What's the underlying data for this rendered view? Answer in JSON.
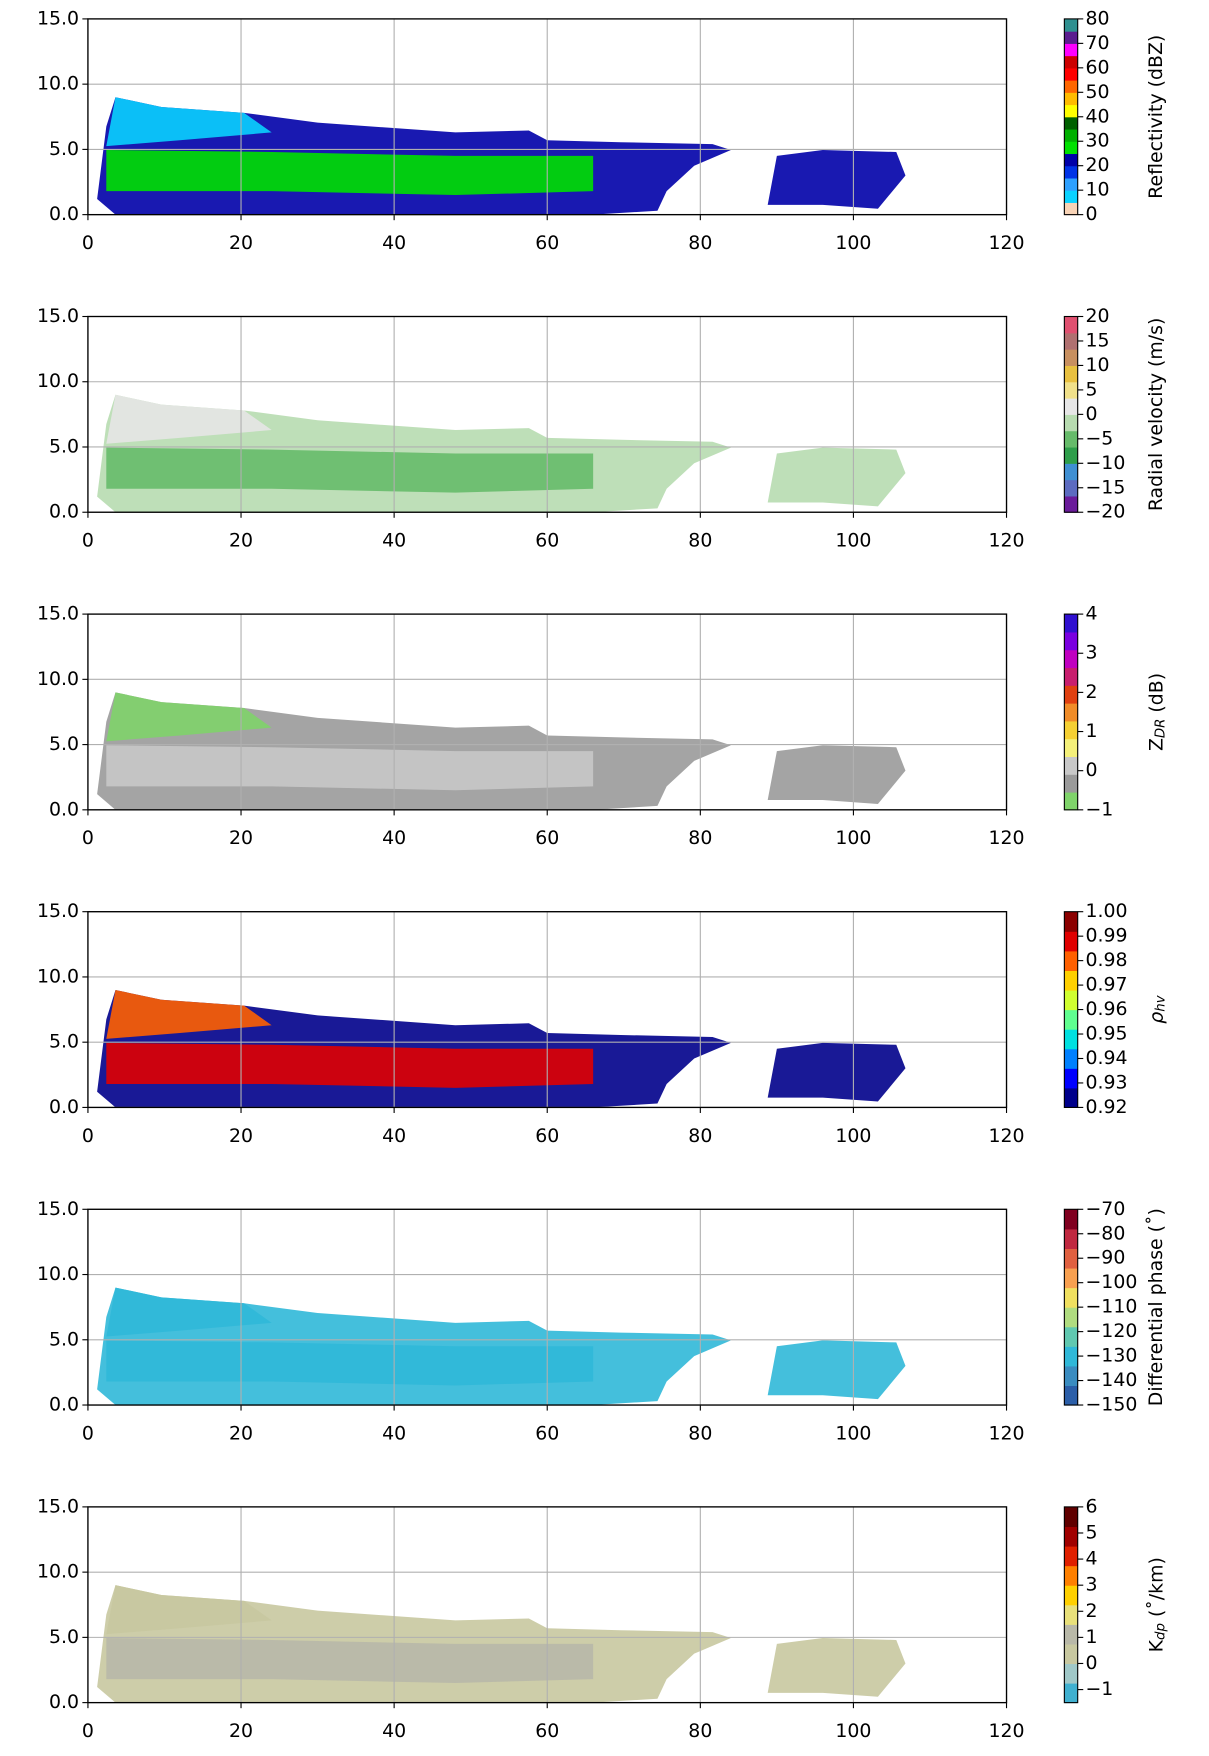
{
  "chart_data": [
    {
      "type": "heatmap",
      "xlim": [
        0,
        120
      ],
      "xticks": [
        0,
        20,
        40,
        60,
        80,
        100,
        120
      ],
      "ylim": [
        0,
        15
      ],
      "yticks": [
        {
          "value": 0,
          "label": "0.0"
        },
        {
          "value": 5,
          "label": "5.0"
        },
        {
          "value": 10,
          "label": "10.0"
        },
        {
          "value": 15,
          "label": "15.0"
        }
      ],
      "grid": true,
      "colorbar": {
        "label": "Reflectivity (dBZ)",
        "lim": [
          0,
          80
        ],
        "ticks": [
          0,
          10,
          20,
          30,
          40,
          50,
          60,
          70,
          80
        ],
        "colors": [
          "#f8d3b6",
          "#0ad2ff",
          "#2ea0ff",
          "#0033e6",
          "#0000a8",
          "#00e000",
          "#00b000",
          "#006000",
          "#ffff00",
          "#ffbb00",
          "#ff6600",
          "#ff0000",
          "#cc0000",
          "#ff00ff",
          "#5b1d8f",
          "#2f9090"
        ]
      }
    },
    {
      "type": "heatmap",
      "xlim": [
        0,
        120
      ],
      "xticks": [
        0,
        20,
        40,
        60,
        80,
        100,
        120
      ],
      "ylim": [
        0,
        15
      ],
      "yticks": [
        {
          "value": 0,
          "label": "0.0"
        },
        {
          "value": 5,
          "label": "5.0"
        },
        {
          "value": 10,
          "label": "10.0"
        },
        {
          "value": 15,
          "label": "15.0"
        }
      ],
      "grid": true,
      "colorbar": {
        "label": "Radial velocity (m/s)",
        "lim": [
          -20,
          20
        ],
        "ticks": [
          {
            "value": -20,
            "label": "−20"
          },
          {
            "value": -15,
            "label": "−15"
          },
          {
            "value": -10,
            "label": "−10"
          },
          {
            "value": -5,
            "label": "−5"
          },
          0,
          5,
          10,
          15,
          20
        ],
        "colors": [
          "#6a1b9a",
          "#5c6bc0",
          "#3f8fd2",
          "#2e9e4a",
          "#66bb6a",
          "#b7dbb0",
          "#e6e6e6",
          "#f0e08a",
          "#e8c040",
          "#c89060",
          "#b07070",
          "#e05070"
        ]
      }
    },
    {
      "type": "heatmap",
      "xlim": [
        0,
        120
      ],
      "xticks": [
        0,
        20,
        40,
        60,
        80,
        100,
        120
      ],
      "ylim": [
        0,
        15
      ],
      "yticks": [
        {
          "value": 0,
          "label": "0.0"
        },
        {
          "value": 5,
          "label": "5.0"
        },
        {
          "value": 10,
          "label": "10.0"
        },
        {
          "value": 15,
          "label": "15.0"
        }
      ],
      "grid": true,
      "colorbar": {
        "label_parts": [
          "Z",
          "DR",
          " (dB)"
        ],
        "lim": [
          -1,
          4
        ],
        "ticks": [
          {
            "value": -1,
            "label": "−1"
          },
          0,
          1,
          2,
          3,
          4
        ],
        "colors": [
          "#7fd36a",
          "#9a9a9a",
          "#c8c8c8",
          "#f4f07a",
          "#f5d033",
          "#f08c28",
          "#e04010",
          "#c81e6e",
          "#c000c0",
          "#7a00e0",
          "#3010d0"
        ]
      }
    },
    {
      "type": "heatmap",
      "xlim": [
        0,
        120
      ],
      "xticks": [
        0,
        20,
        40,
        60,
        80,
        100,
        120
      ],
      "ylim": [
        0,
        15
      ],
      "yticks": [
        {
          "value": 0,
          "label": "0.0"
        },
        {
          "value": 5,
          "label": "5.0"
        },
        {
          "value": 10,
          "label": "10.0"
        },
        {
          "value": 15,
          "label": "15.0"
        }
      ],
      "grid": true,
      "colorbar": {
        "label_parts": [
          "ρ",
          "hv"
        ],
        "lim": [
          0.92,
          1
        ],
        "ticks": [
          0.92,
          0.93,
          0.94,
          0.95,
          0.96,
          0.97,
          0.98,
          0.99,
          {
            "value": 1,
            "label": "1.00"
          }
        ],
        "colors": [
          "#00008b",
          "#0000ff",
          "#0080ff",
          "#00e0e0",
          "#60ff90",
          "#d0ff30",
          "#ffd000",
          "#ff6000",
          "#e00000",
          "#8b0000"
        ]
      }
    },
    {
      "type": "heatmap",
      "xlim": [
        0,
        120
      ],
      "xticks": [
        0,
        20,
        40,
        60,
        80,
        100,
        120
      ],
      "ylim": [
        0,
        15
      ],
      "yticks": [
        {
          "value": 0,
          "label": "0.0"
        },
        {
          "value": 5,
          "label": "5.0"
        },
        {
          "value": 10,
          "label": "10.0"
        },
        {
          "value": 15,
          "label": "15.0"
        }
      ],
      "grid": true,
      "colorbar": {
        "label": "Differential phase (˚)",
        "lim": [
          -150,
          -70
        ],
        "ticks": [
          {
            "value": -150,
            "label": "−150"
          },
          {
            "value": -140,
            "label": "−140"
          },
          {
            "value": -130,
            "label": "−130"
          },
          {
            "value": -120,
            "label": "−120"
          },
          {
            "value": -110,
            "label": "−110"
          },
          {
            "value": -100,
            "label": "−100"
          },
          {
            "value": -90,
            "label": "−90"
          },
          {
            "value": -80,
            "label": "−80"
          },
          {
            "value": -70,
            "label": "−70"
          }
        ],
        "colors": [
          "#2b5ea8",
          "#3a8cc0",
          "#30b8d8",
          "#60c8b0",
          "#b0dc80",
          "#f0e060",
          "#f8a050",
          "#e06040",
          "#c02840",
          "#800020"
        ]
      }
    },
    {
      "type": "heatmap",
      "xlim": [
        0,
        120
      ],
      "xticks": [
        0,
        20,
        40,
        60,
        80,
        100,
        120
      ],
      "ylim": [
        0,
        15
      ],
      "yticks": [
        {
          "value": 0,
          "label": "0.0"
        },
        {
          "value": 5,
          "label": "5.0"
        },
        {
          "value": 10,
          "label": "10.0"
        },
        {
          "value": 15,
          "label": "15.0"
        }
      ],
      "grid": true,
      "colorbar": {
        "label_parts": [
          "K",
          "dp",
          " (˚/km)"
        ],
        "lim": [
          -1.5,
          6
        ],
        "ticks": [
          {
            "value": -1,
            "label": "−1"
          },
          0,
          1,
          2,
          3,
          4,
          5,
          6
        ],
        "colors": [
          "#40b0d0",
          "#a0c8c8",
          "#c8c8a0",
          "#b8b8a8",
          "#e8e07a",
          "#ffd000",
          "#ff8000",
          "#e02000",
          "#a00000",
          "#600000"
        ]
      }
    }
  ]
}
